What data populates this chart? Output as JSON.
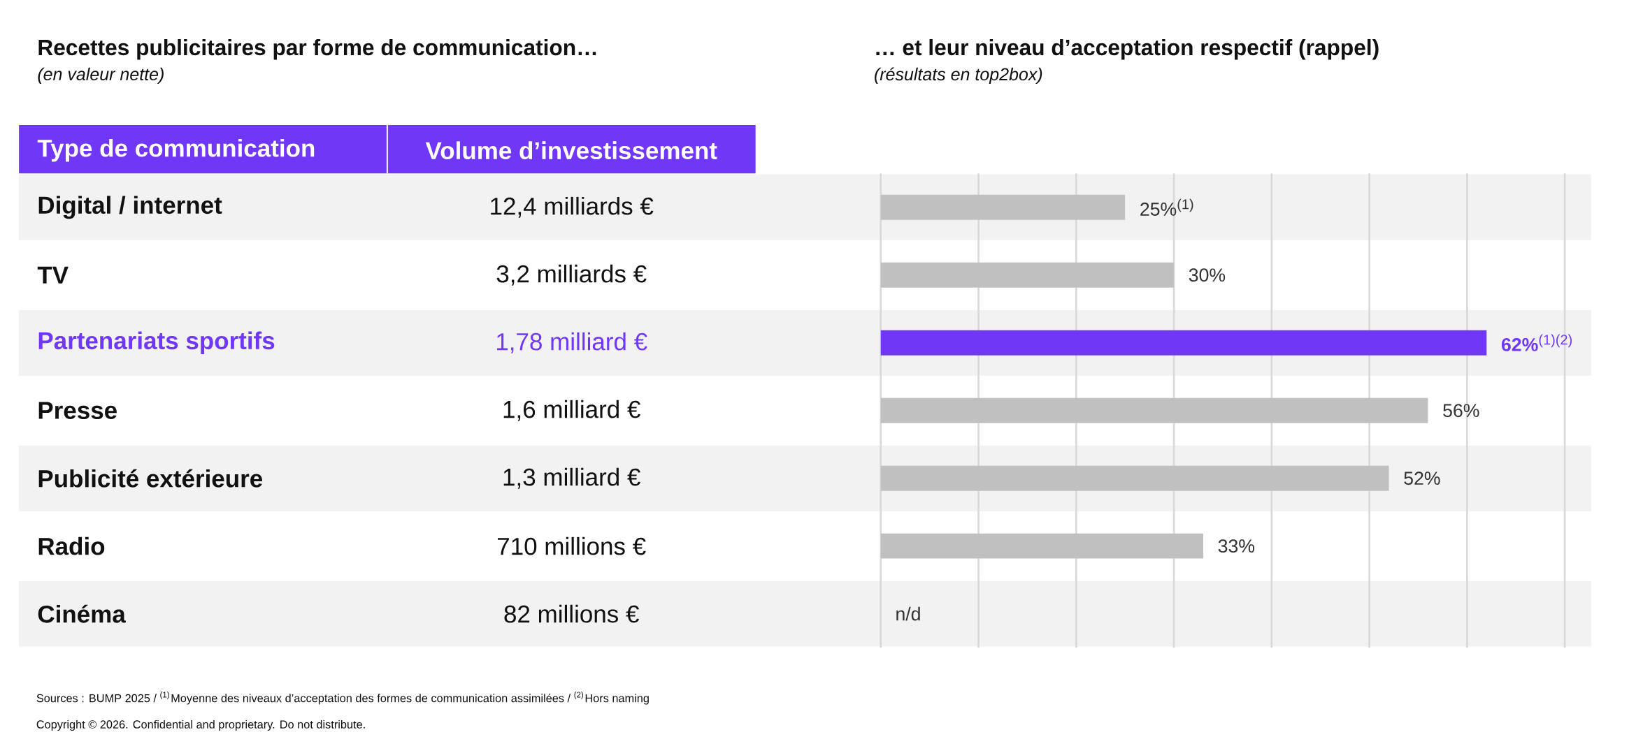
{
  "chart_data": [
    {
      "type": "other",
      "title": "Recettes publicitaires par forme de communication…",
      "subtitle": "(en valeur nette)",
      "annotations": [
        "Type de communication",
        "Volume d’investissement",
        "12,4 milliards €",
        "3,2 milliards €",
        "1,78 milliard €",
        "1,6 milliard €",
        "1,3 milliard €",
        "710 millions €",
        "82 millions €"
      ]
    },
    {
      "type": "bar",
      "orientation": "horizontal",
      "title": "… et leur niveau d’acceptation respectif (rappel)",
      "subtitle": "(résultats en top2box)",
      "categories": [
        "Digital / internet",
        "TV",
        "Partenariats sportifs",
        "Presse",
        "Publicité extérieure",
        "Radio",
        "Cinéma"
      ],
      "values": [
        25,
        30,
        62,
        56,
        52,
        33,
        null
      ],
      "colors": [
        "#c0c0c0",
        "#c0c0c0",
        "#7038f6",
        "#c0c0c0",
        "#c0c0c0",
        "#c0c0c0",
        "#c0c0c0"
      ],
      "value_labels": [
        "25%$^{(1)}$",
        "30%",
        "**62%**$^{(1)(2)}$",
        "56%",
        "52%",
        "33%",
        "n/d"
      ],
      "xlim": [
        0,
        70
      ],
      "xticks": [
        {
          "value": 0,
          "label": null
        },
        {
          "value": 10,
          "label": null
        },
        {
          "value": 20,
          "label": null
        },
        {
          "value": 30,
          "label": null
        },
        {
          "value": 40,
          "label": null
        },
        {
          "value": 50,
          "label": null
        },
        {
          "value": 60,
          "label": null
        },
        {
          "value": 70,
          "label": null
        }
      ],
      "grid": "x",
      "annotations": [
        "Sources : BUMP 2025 / $^{(1)}$Moyenne des niveaux d’acceptation des formes de communication assimilées / $^{(2)}$Hors naming",
        "Copyright © 2026. Confidential and proprietary. Do not distribute."
      ]
    }
  ]
}
